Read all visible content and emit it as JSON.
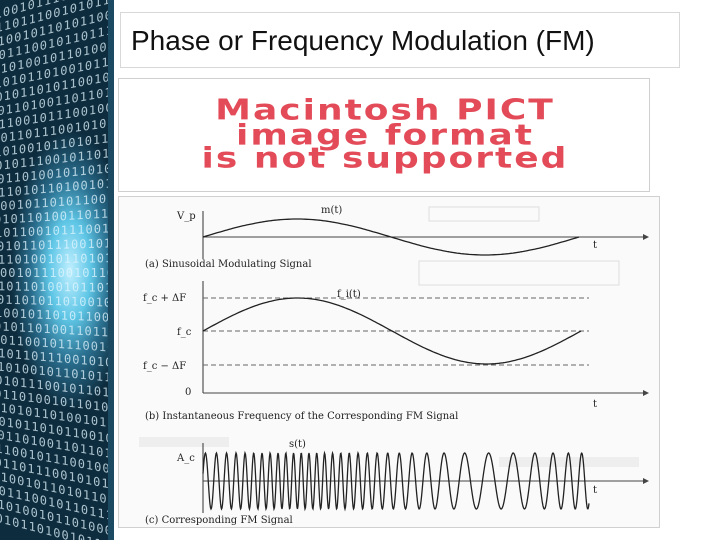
{
  "slide": {
    "title": "Phase or Frequency Modulation (FM)",
    "placeholder_image": {
      "lines": [
        "Macintosh PICT",
        "image format",
        "is not supported"
      ],
      "color": "#e34b59"
    }
  },
  "figure": {
    "panel_a": {
      "caption": "(a) Sinusoidal Modulating Signal",
      "y_label": "V_p",
      "curve_label": "m(t)",
      "axis_label": "t"
    },
    "panel_b": {
      "caption": "(b) Instantaneous Frequency of the Corresponding FM Signal",
      "y_labels": [
        "f_c + ΔF",
        "f_c",
        "f_c − ΔF",
        "0"
      ],
      "curve_label": "f_i(t)",
      "axis_label": "t"
    },
    "panel_c": {
      "caption": "(c) Corresponding FM Signal",
      "y_label": "A_c",
      "curve_label": "s(t)",
      "axis_label": "t"
    }
  },
  "side_art": {
    "rows": [
      "1011001011100100",
      "0101101110010101",
      "1101001011010110",
      "0010111001011011",
      "1011010010110100",
      "0110101101001011",
      "1001011010110010",
      "0101101001101101"
    ]
  }
}
